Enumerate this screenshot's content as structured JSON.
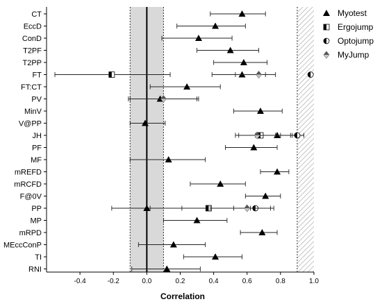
{
  "chart_data": {
    "type": "forest",
    "xlabel": "Correlation",
    "xlim": [
      -0.6,
      1.0
    ],
    "xticks": [
      -0.4,
      -0.2,
      0.0,
      0.2,
      0.4,
      0.6,
      0.8,
      1.0
    ],
    "xtick_labels": [
      "-0.4",
      "-0.2",
      "0.0",
      "0.2",
      "0.4",
      "0.6",
      "0.8",
      "1.0"
    ],
    "categories": [
      "CT",
      "EccD",
      "ConD",
      "T2PF",
      "T2PP",
      "FT",
      "FT:CT",
      "PV",
      "MinV",
      "V@PP",
      "JH",
      "PF",
      "MF",
      "mREFD",
      "mRCFD",
      "F@0V",
      "PP",
      "MP",
      "mRPD",
      "MEccConP",
      "TI",
      "RNI"
    ],
    "reference_regions": [
      {
        "kind": "shaded",
        "from": -0.1,
        "to": 0.1,
        "color": "#d9d9d9"
      },
      {
        "kind": "hatched",
        "from": 0.9,
        "to": 1.0
      }
    ],
    "reference_line": 0.0,
    "legend_position": "top-right",
    "series": [
      {
        "name": "Myotest",
        "marker": "triangle",
        "points": [
          {
            "category": "CT",
            "r": 0.57,
            "lo": 0.38,
            "hi": 0.71
          },
          {
            "category": "EccD",
            "r": 0.41,
            "lo": 0.18,
            "hi": 0.59
          },
          {
            "category": "ConD",
            "r": 0.31,
            "lo": 0.09,
            "hi": 0.51
          },
          {
            "category": "T2PF",
            "r": 0.5,
            "lo": 0.3,
            "hi": 0.67
          },
          {
            "category": "T2PP",
            "r": 0.58,
            "lo": 0.4,
            "hi": 0.72
          },
          {
            "category": "FT",
            "r": 0.57,
            "lo": 0.39,
            "hi": 0.71
          },
          {
            "category": "FT:CT",
            "r": 0.24,
            "lo": 0.02,
            "hi": 0.44
          },
          {
            "category": "PV",
            "r": 0.08,
            "lo": -0.11,
            "hi": 0.3
          },
          {
            "category": "MinV",
            "r": 0.68,
            "lo": 0.52,
            "hi": 0.81
          },
          {
            "category": "V@PP",
            "r": -0.01,
            "lo": -0.1,
            "hi": 0.11
          },
          {
            "category": "JH",
            "r": 0.78,
            "lo": 0.65,
            "hi": 0.87
          },
          {
            "category": "PF",
            "r": 0.64,
            "lo": 0.47,
            "hi": 0.78
          },
          {
            "category": "MF",
            "r": 0.13,
            "lo": -0.1,
            "hi": 0.35
          },
          {
            "category": "mREFD",
            "r": 0.78,
            "lo": 0.68,
            "hi": 0.85
          },
          {
            "category": "mRCFD",
            "r": 0.44,
            "lo": 0.26,
            "hi": 0.59
          },
          {
            "category": "F@0V",
            "r": 0.71,
            "lo": 0.59,
            "hi": 0.8
          },
          {
            "category": "PP",
            "r": 0.0,
            "lo": -0.21,
            "hi": 0.21
          },
          {
            "category": "MP",
            "r": 0.3,
            "lo": 0.1,
            "hi": 0.48
          },
          {
            "category": "mRPD",
            "r": 0.69,
            "lo": 0.56,
            "hi": 0.78
          },
          {
            "category": "MEccConP",
            "r": 0.16,
            "lo": -0.05,
            "hi": 0.35
          },
          {
            "category": "TI",
            "r": 0.41,
            "lo": 0.22,
            "hi": 0.57
          },
          {
            "category": "RNI",
            "r": 0.12,
            "lo": -0.09,
            "hi": 0.32
          }
        ]
      },
      {
        "name": "Ergojump",
        "marker": "half-square",
        "points": [
          {
            "category": "FT",
            "r": -0.21,
            "lo": -0.55,
            "hi": 0.14
          },
          {
            "category": "JH",
            "r": 0.68,
            "lo": 0.55,
            "hi": 0.8
          },
          {
            "category": "PP",
            "r": 0.37,
            "lo": 0.02,
            "hi": 0.62
          }
        ]
      },
      {
        "name": "Optojump",
        "marker": "half-circle",
        "points": [
          {
            "category": "FT",
            "r": 0.98,
            "lo": 0.98,
            "hi": 0.98
          },
          {
            "category": "JH",
            "r": 0.9,
            "lo": 0.86,
            "hi": 0.94
          },
          {
            "category": "PP",
            "r": 0.65,
            "lo": 0.52,
            "hi": 0.76
          }
        ]
      },
      {
        "name": "MyJump",
        "marker": "diamond",
        "points": [
          {
            "category": "FT",
            "r": 0.67,
            "lo": 0.53,
            "hi": 0.77
          },
          {
            "category": "PV",
            "r": 0.1,
            "lo": -0.1,
            "hi": 0.31
          },
          {
            "category": "JH",
            "r": 0.66,
            "lo": 0.53,
            "hi": 0.77
          },
          {
            "category": "PP",
            "r": 0.6,
            "lo": 0.38,
            "hi": 0.74
          }
        ]
      }
    ]
  }
}
